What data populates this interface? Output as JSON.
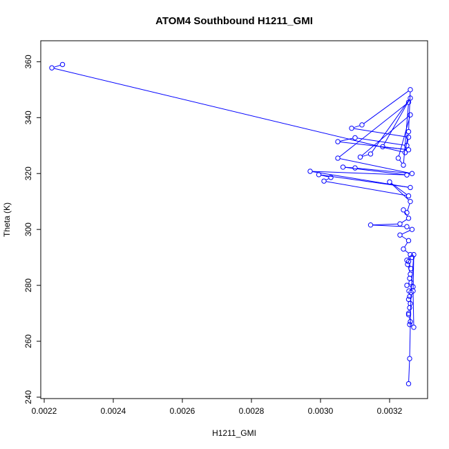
{
  "chart_data": {
    "type": "scatter",
    "title": "ATOM4 Southbound H1211_GMI",
    "xlabel": "H1211_GMI",
    "ylabel": "Theta (K)",
    "xlim": [
      0.00219,
      0.00331
    ],
    "ylim": [
      239.5,
      367.5
    ],
    "x_ticks": [
      "0.0022",
      "0.0024",
      "0.0026",
      "0.0028",
      "0.0030",
      "0.0032"
    ],
    "x_tick_values": [
      0.0022,
      0.0024,
      0.0026,
      0.0028,
      0.003,
      0.0032
    ],
    "y_ticks": [
      "240",
      "260",
      "280",
      "300",
      "320",
      "340",
      "360"
    ],
    "y_tick_values": [
      240,
      260,
      280,
      300,
      320,
      340,
      360
    ],
    "grid": false,
    "legend": "none",
    "series_color": "#0000ff",
    "line_style": "points-connected",
    "x": [
      0.002253,
      0.002222,
      0.003245,
      0.003255,
      0.00326,
      0.00312,
      0.00309,
      0.003255,
      0.00325,
      0.0031,
      0.00305,
      0.003255,
      0.00318,
      0.00326,
      0.003145,
      0.003115,
      0.00326,
      0.003225,
      0.00324,
      0.003255,
      0.00305,
      0.003265,
      0.0031,
      0.003065,
      0.00325,
      0.00297,
      0.00326,
      0.002995,
      0.00303,
      0.00301,
      0.003255,
      0.0032,
      0.00326,
      0.00325,
      0.00324,
      0.003255,
      0.00323,
      0.003145,
      0.00325,
      0.003265,
      0.00323,
      0.003255,
      0.00324,
      0.00326,
      0.00325,
      0.003265,
      0.003255,
      0.003262,
      0.003252,
      0.00326,
      0.003258,
      0.003262,
      0.00325,
      0.003268,
      0.003256,
      0.003258,
      0.003255,
      0.00326,
      0.003258,
      0.003255,
      0.003255,
      0.00326,
      0.003258,
      0.00327,
      0.003268,
      0.00327,
      0.003262,
      0.003258,
      0.003255
    ],
    "y": [
      359.0,
      357.8,
      327.5,
      335.0,
      350.0,
      337.4,
      336.2,
      333.0,
      330.0,
      332.8,
      331.4,
      328.5,
      329.6,
      347.0,
      327.0,
      325.9,
      341.0,
      325.5,
      323.0,
      345.5,
      325.5,
      320.0,
      322.0,
      322.3,
      319.5,
      320.8,
      315.0,
      319.6,
      318.6,
      317.3,
      312.0,
      317.0,
      310.0,
      306.0,
      307.0,
      304.0,
      302.0,
      301.6,
      301.0,
      300.0,
      298.0,
      296.0,
      293.0,
      291.0,
      289.0,
      290.0,
      288.5,
      286.0,
      287.5,
      284.0,
      282.5,
      281.0,
      280.0,
      279.5,
      278.0,
      276.0,
      275.0,
      273.5,
      272.0,
      270.0,
      269.5,
      267.0,
      266.0,
      265.0,
      278.0,
      291.0,
      277.5,
      253.8,
      244.8
    ]
  }
}
